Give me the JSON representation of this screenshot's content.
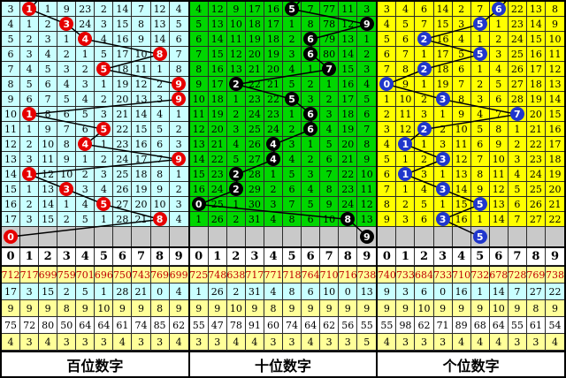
{
  "colors": {
    "line": "#000000",
    "gray_row_bg": "#c9c9c9",
    "header_bg": "#ffffff",
    "stat_value_text": "#c00000",
    "stats_row_bgs": [
      "#ffff99",
      "#c9ffff",
      "#ffff99",
      "#ffffff",
      "#ffff99"
    ]
  },
  "chart_data": {
    "type": "table",
    "description": "3D lottery digit trend chart: per-digit miss counts with drawn-digit circles and connecting trend line",
    "panels": [
      {
        "id": "hundreds",
        "label": "百位数字",
        "bg": "#c9ffff",
        "circle_color": "#e60000",
        "digits": [
          "0",
          "1",
          "2",
          "3",
          "4",
          "5",
          "6",
          "7",
          "8",
          "9"
        ],
        "rows": [
          {
            "cells": [
              "3",
              "1",
              "1",
              "9",
              "23",
              "2",
              "14",
              "7",
              "12",
              "4"
            ],
            "pick": 1
          },
          {
            "cells": [
              "4",
              "1",
              "2",
              "3",
              "24",
              "3",
              "15",
              "8",
              "13",
              "5"
            ],
            "pick": 3
          },
          {
            "cells": [
              "5",
              "2",
              "3",
              "1",
              "4",
              "4",
              "16",
              "9",
              "14",
              "6"
            ],
            "pick": 4
          },
          {
            "cells": [
              "6",
              "3",
              "4",
              "2",
              "1",
              "5",
              "17",
              "10",
              "8",
              "7"
            ],
            "pick": 8
          },
          {
            "cells": [
              "7",
              "4",
              "5",
              "3",
              "2",
              "5",
              "18",
              "11",
              "1",
              "8"
            ],
            "pick": 5
          },
          {
            "cells": [
              "8",
              "5",
              "6",
              "4",
              "3",
              "1",
              "19",
              "12",
              "2",
              "9"
            ],
            "pick": 9
          },
          {
            "cells": [
              "9",
              "6",
              "7",
              "5",
              "4",
              "2",
              "20",
              "13",
              "3",
              "9"
            ],
            "pick": 9
          },
          {
            "cells": [
              "10",
              "1",
              "8",
              "6",
              "5",
              "3",
              "21",
              "14",
              "4",
              "1"
            ],
            "pick": 1
          },
          {
            "cells": [
              "11",
              "1",
              "9",
              "7",
              "6",
              "5",
              "22",
              "15",
              "5",
              "2"
            ],
            "pick": 5
          },
          {
            "cells": [
              "12",
              "2",
              "10",
              "8",
              "4",
              "1",
              "23",
              "16",
              "6",
              "3"
            ],
            "pick": 4
          },
          {
            "cells": [
              "13",
              "3",
              "11",
              "9",
              "1",
              "2",
              "24",
              "17",
              "7",
              "9"
            ],
            "pick": 9
          },
          {
            "cells": [
              "14",
              "1",
              "12",
              "10",
              "2",
              "3",
              "25",
              "18",
              "8",
              "1"
            ],
            "pick": 1
          },
          {
            "cells": [
              "15",
              "1",
              "13",
              "3",
              "3",
              "4",
              "26",
              "19",
              "9",
              "2"
            ],
            "pick": 3
          },
          {
            "cells": [
              "16",
              "2",
              "14",
              "1",
              "4",
              "5",
              "27",
              "20",
              "10",
              "3"
            ],
            "pick": 5
          },
          {
            "cells": [
              "17",
              "3",
              "15",
              "2",
              "5",
              "1",
              "28",
              "21",
              "8",
              "4"
            ],
            "pick": 8
          }
        ],
        "tail_pick": {
          "col": 0,
          "value": "0"
        },
        "stats": [
          [
            "712",
            "717",
            "699",
            "759",
            "701",
            "696",
            "750",
            "743",
            "769",
            "699"
          ],
          [
            "17",
            "3",
            "15",
            "2",
            "5",
            "1",
            "28",
            "21",
            "0",
            "4"
          ],
          [
            "9",
            "9",
            "9",
            "8",
            "9",
            "10",
            "9",
            "9",
            "8",
            "9"
          ],
          [
            "75",
            "72",
            "80",
            "50",
            "64",
            "64",
            "61",
            "74",
            "85",
            "62"
          ],
          [
            "4",
            "3",
            "4",
            "3",
            "3",
            "3",
            "4",
            "3",
            "3",
            "4"
          ]
        ]
      },
      {
        "id": "tens",
        "label": "十位数字",
        "bg": "#00d600",
        "circle_color": "#000000",
        "digits": [
          "0",
          "1",
          "2",
          "3",
          "4",
          "5",
          "6",
          "7",
          "8",
          "9"
        ],
        "rows": [
          {
            "cells": [
              "4",
              "12",
              "9",
              "17",
              "16",
              "5",
              "7",
              "77",
              "11",
              "3"
            ],
            "pick": 5
          },
          {
            "cells": [
              "5",
              "13",
              "10",
              "18",
              "17",
              "1",
              "8",
              "78",
              "12",
              "9"
            ],
            "pick": 9
          },
          {
            "cells": [
              "6",
              "14",
              "11",
              "19",
              "18",
              "2",
              "6",
              "79",
              "13",
              "1"
            ],
            "pick": 6
          },
          {
            "cells": [
              "7",
              "15",
              "12",
              "20",
              "19",
              "3",
              "6",
              "80",
              "14",
              "2"
            ],
            "pick": 6
          },
          {
            "cells": [
              "8",
              "16",
              "13",
              "21",
              "20",
              "4",
              "1",
              "7",
              "15",
              "3"
            ],
            "pick": 7
          },
          {
            "cells": [
              "9",
              "17",
              "2",
              "22",
              "21",
              "5",
              "2",
              "1",
              "16",
              "4"
            ],
            "pick": 2
          },
          {
            "cells": [
              "10",
              "18",
              "1",
              "23",
              "22",
              "5",
              "3",
              "2",
              "17",
              "5"
            ],
            "pick": 5
          },
          {
            "cells": [
              "11",
              "19",
              "2",
              "24",
              "23",
              "1",
              "6",
              "3",
              "18",
              "6"
            ],
            "pick": 6
          },
          {
            "cells": [
              "12",
              "20",
              "3",
              "25",
              "24",
              "2",
              "6",
              "4",
              "19",
              "7"
            ],
            "pick": 6
          },
          {
            "cells": [
              "13",
              "21",
              "4",
              "26",
              "4",
              "3",
              "1",
              "5",
              "20",
              "8"
            ],
            "pick": 4
          },
          {
            "cells": [
              "14",
              "22",
              "5",
              "27",
              "4",
              "4",
              "2",
              "6",
              "21",
              "9"
            ],
            "pick": 4
          },
          {
            "cells": [
              "15",
              "23",
              "2",
              "28",
              "1",
              "5",
              "3",
              "7",
              "22",
              "10"
            ],
            "pick": 2
          },
          {
            "cells": [
              "16",
              "24",
              "2",
              "29",
              "2",
              "6",
              "4",
              "8",
              "23",
              "11"
            ],
            "pick": 2
          },
          {
            "cells": [
              "0",
              "25",
              "1",
              "30",
              "3",
              "7",
              "5",
              "9",
              "24",
              "12"
            ],
            "pick": 0
          },
          {
            "cells": [
              "1",
              "26",
              "2",
              "31",
              "4",
              "8",
              "6",
              "10",
              "8",
              "13"
            ],
            "pick": 8
          }
        ],
        "tail_pick": {
          "col": 9,
          "value": "9"
        },
        "stats": [
          [
            "725",
            "748",
            "638",
            "717",
            "771",
            "718",
            "764",
            "710",
            "716",
            "738"
          ],
          [
            "1",
            "26",
            "2",
            "31",
            "4",
            "8",
            "6",
            "10",
            "0",
            "13"
          ],
          [
            "9",
            "9",
            "10",
            "9",
            "8",
            "9",
            "9",
            "9",
            "9",
            "9"
          ],
          [
            "55",
            "47",
            "78",
            "91",
            "60",
            "74",
            "64",
            "62",
            "56",
            "55"
          ],
          [
            "3",
            "3",
            "4",
            "4",
            "3",
            "3",
            "4",
            "3",
            "3",
            "5"
          ]
        ]
      },
      {
        "id": "units",
        "label": "个位数字",
        "bg": "#ffff00",
        "circle_color": "#2036cc",
        "digits": [
          "0",
          "1",
          "2",
          "3",
          "4",
          "5",
          "6",
          "7",
          "8",
          "9"
        ],
        "rows": [
          {
            "cells": [
              "3",
              "4",
              "6",
              "14",
              "2",
              "7",
              "6",
              "22",
              "13",
              "8"
            ],
            "pick": 6
          },
          {
            "cells": [
              "4",
              "5",
              "7",
              "15",
              "3",
              "5",
              "1",
              "23",
              "14",
              "9"
            ],
            "pick": 5
          },
          {
            "cells": [
              "5",
              "6",
              "2",
              "16",
              "4",
              "1",
              "2",
              "24",
              "15",
              "10"
            ],
            "pick": 2
          },
          {
            "cells": [
              "6",
              "7",
              "1",
              "17",
              "5",
              "5",
              "3",
              "25",
              "16",
              "11"
            ],
            "pick": 5
          },
          {
            "cells": [
              "7",
              "8",
              "2",
              "18",
              "6",
              "1",
              "4",
              "26",
              "17",
              "12"
            ],
            "pick": 2
          },
          {
            "cells": [
              "0",
              "9",
              "1",
              "19",
              "7",
              "2",
              "5",
              "27",
              "18",
              "13"
            ],
            "pick": 0
          },
          {
            "cells": [
              "1",
              "10",
              "2",
              "3",
              "8",
              "3",
              "6",
              "28",
              "19",
              "14"
            ],
            "pick": 3
          },
          {
            "cells": [
              "2",
              "11",
              "3",
              "1",
              "9",
              "4",
              "7",
              "7",
              "20",
              "15"
            ],
            "pick": 7
          },
          {
            "cells": [
              "3",
              "12",
              "2",
              "2",
              "10",
              "5",
              "8",
              "1",
              "21",
              "16"
            ],
            "pick": 2
          },
          {
            "cells": [
              "4",
              "1",
              "1",
              "3",
              "11",
              "6",
              "9",
              "2",
              "22",
              "17"
            ],
            "pick": 1
          },
          {
            "cells": [
              "5",
              "1",
              "2",
              "3",
              "12",
              "7",
              "10",
              "3",
              "23",
              "18"
            ],
            "pick": 3
          },
          {
            "cells": [
              "6",
              "1",
              "3",
              "1",
              "13",
              "8",
              "11",
              "4",
              "24",
              "19"
            ],
            "pick": 1
          },
          {
            "cells": [
              "7",
              "1",
              "4",
              "3",
              "14",
              "9",
              "12",
              "5",
              "25",
              "20"
            ],
            "pick": 3
          },
          {
            "cells": [
              "8",
              "2",
              "5",
              "1",
              "15",
              "5",
              "13",
              "6",
              "26",
              "21"
            ],
            "pick": 5
          },
          {
            "cells": [
              "9",
              "3",
              "6",
              "3",
              "16",
              "1",
              "14",
              "7",
              "27",
              "22"
            ],
            "pick": 3
          }
        ],
        "tail_pick": {
          "col": 5,
          "value": "5"
        },
        "stats": [
          [
            "740",
            "733",
            "684",
            "733",
            "710",
            "732",
            "678",
            "728",
            "769",
            "738"
          ],
          [
            "9",
            "3",
            "6",
            "0",
            "16",
            "1",
            "14",
            "7",
            "27",
            "22"
          ],
          [
            "9",
            "9",
            "10",
            "9",
            "9",
            "9",
            "10",
            "9",
            "8",
            "9"
          ],
          [
            "55",
            "98",
            "62",
            "71",
            "89",
            "68",
            "64",
            "55",
            "61",
            "54"
          ],
          [
            "4",
            "3",
            "3",
            "3",
            "4",
            "4",
            "4",
            "3",
            "3",
            "4"
          ]
        ]
      }
    ]
  }
}
